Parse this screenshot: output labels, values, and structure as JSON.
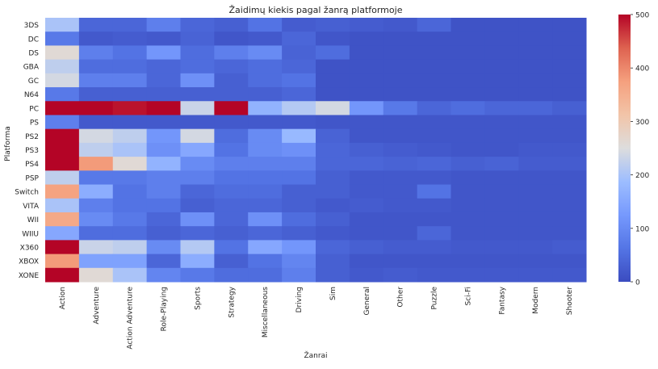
{
  "chart_data": {
    "type": "heatmap",
    "title": "Žaidimų kiekis pagal žanrą platformoje",
    "xlabel": "Žanrai",
    "ylabel": "Platforma",
    "x_categories": [
      "Action",
      "Adventure",
      "Action Adventure",
      "Role-Playing",
      "Sports",
      "Strategy",
      "Miscellaneous",
      "Driving",
      "Sim",
      "General",
      "Other",
      "Puzzle",
      "Sci-Fi",
      "Fantasy",
      "Modern",
      "Shooter"
    ],
    "y_categories": [
      "3DS",
      "DC",
      "DS",
      "GBA",
      "GC",
      "N64",
      "PC",
      "PS",
      "PS2",
      "PS3",
      "PS4",
      "PSP",
      "Switch",
      "VITA",
      "WII",
      "WIIU",
      "X360",
      "XBOX",
      "XONE"
    ],
    "values": [
      [
        200,
        40,
        40,
        80,
        40,
        30,
        60,
        25,
        30,
        25,
        20,
        40,
        10,
        10,
        10,
        10
      ],
      [
        70,
        20,
        25,
        20,
        35,
        15,
        20,
        40,
        15,
        10,
        10,
        10,
        10,
        10,
        10,
        10
      ],
      [
        260,
        80,
        60,
        120,
        50,
        80,
        100,
        35,
        50,
        10,
        10,
        10,
        10,
        10,
        10,
        10
      ],
      [
        220,
        50,
        50,
        40,
        50,
        40,
        50,
        40,
        10,
        10,
        10,
        10,
        10,
        10,
        10,
        10
      ],
      [
        240,
        80,
        80,
        40,
        110,
        30,
        50,
        60,
        10,
        10,
        10,
        10,
        10,
        10,
        10,
        10
      ],
      [
        70,
        30,
        30,
        30,
        30,
        30,
        30,
        40,
        10,
        10,
        10,
        10,
        10,
        10,
        10,
        10
      ],
      [
        500,
        500,
        490,
        500,
        230,
        500,
        170,
        210,
        240,
        120,
        70,
        40,
        50,
        40,
        40,
        30
      ],
      [
        80,
        20,
        20,
        20,
        20,
        20,
        20,
        20,
        15,
        15,
        15,
        15,
        15,
        15,
        15,
        15
      ],
      [
        500,
        240,
        220,
        120,
        240,
        50,
        100,
        180,
        35,
        15,
        15,
        15,
        15,
        15,
        15,
        15
      ],
      [
        500,
        220,
        200,
        110,
        150,
        60,
        100,
        110,
        40,
        30,
        25,
        20,
        15,
        15,
        20,
        20
      ],
      [
        500,
        380,
        260,
        170,
        100,
        80,
        80,
        80,
        40,
        40,
        35,
        40,
        30,
        35,
        25,
        25
      ],
      [
        220,
        70,
        70,
        80,
        80,
        60,
        60,
        60,
        30,
        20,
        20,
        20,
        15,
        15,
        15,
        15
      ],
      [
        370,
        160,
        60,
        80,
        40,
        50,
        50,
        30,
        30,
        20,
        20,
        60,
        15,
        15,
        15,
        15
      ],
      [
        200,
        80,
        60,
        60,
        30,
        40,
        40,
        30,
        20,
        25,
        20,
        20,
        15,
        15,
        15,
        15
      ],
      [
        360,
        100,
        70,
        40,
        110,
        40,
        110,
        50,
        30,
        15,
        15,
        15,
        15,
        15,
        15,
        15
      ],
      [
        150,
        50,
        50,
        30,
        40,
        30,
        40,
        30,
        20,
        15,
        15,
        40,
        15,
        15,
        15,
        15
      ],
      [
        500,
        230,
        220,
        100,
        210,
        60,
        150,
        120,
        40,
        30,
        25,
        25,
        20,
        20,
        20,
        25
      ],
      [
        380,
        140,
        140,
        40,
        160,
        30,
        60,
        90,
        30,
        15,
        15,
        15,
        15,
        15,
        15,
        15
      ],
      [
        500,
        260,
        200,
        90,
        70,
        50,
        50,
        80,
        30,
        20,
        25,
        20,
        20,
        20,
        20,
        20
      ]
    ],
    "zlim": [
      0,
      500
    ],
    "colormap": "coolwarm",
    "colorbar_ticks": [
      0,
      100,
      200,
      300,
      400,
      500
    ],
    "grid": false,
    "colors": {
      "low": "#3b4cc0",
      "mid": "#dddddd",
      "high": "#b40426"
    }
  }
}
